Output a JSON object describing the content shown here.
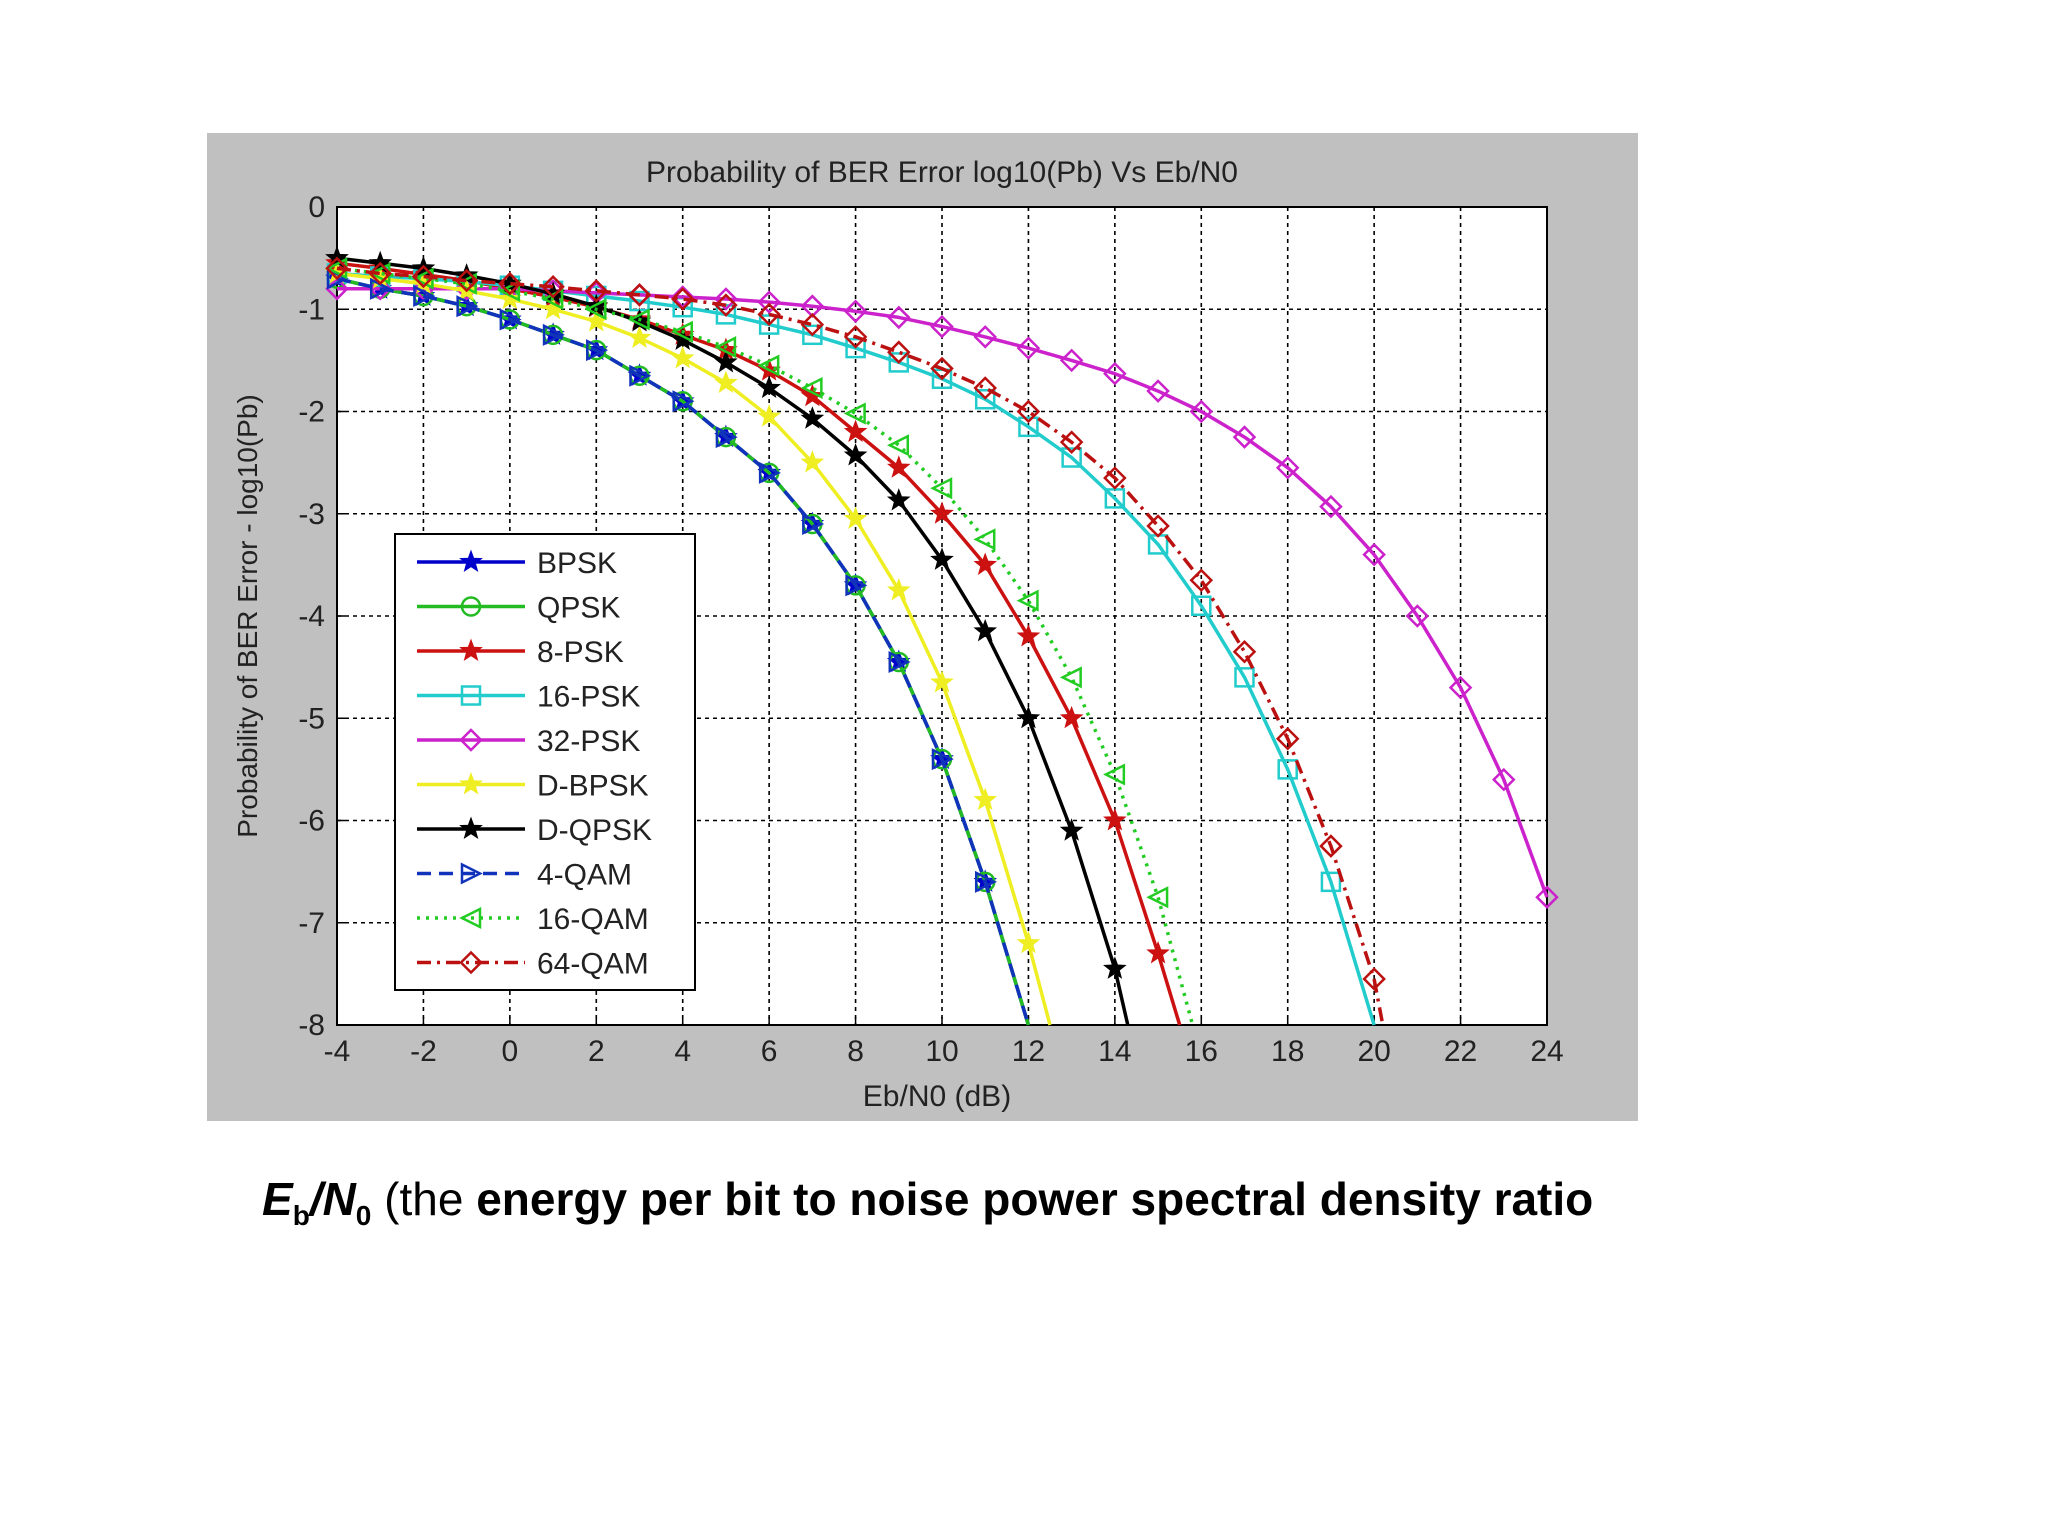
{
  "chart_data": {
    "type": "line",
    "title": "Probability of BER Error log10(Pb) Vs Eb/N0",
    "xlabel": "Eb/N0 (dB)",
    "ylabel": "Probability of BER Error - log10(Pb)",
    "xlim": [
      -4,
      24
    ],
    "ylim": [
      -8,
      0
    ],
    "xticks": [
      -4,
      -2,
      0,
      2,
      4,
      6,
      8,
      10,
      12,
      14,
      16,
      18,
      20,
      22,
      24
    ],
    "yticks": [
      0,
      -1,
      -2,
      -3,
      -4,
      -5,
      -6,
      -7,
      -8
    ],
    "grid": true,
    "legend_position": "lower-left",
    "series": [
      {
        "name": "BPSK",
        "color": "#0000cc",
        "style": "solid",
        "marker": "star",
        "x": [
          -4,
          -3,
          -2,
          -1,
          0,
          1,
          2,
          3,
          4,
          5,
          6,
          7,
          8,
          9,
          10,
          11,
          12
        ],
        "y": [
          -0.7,
          -0.8,
          -0.87,
          -0.97,
          -1.1,
          -1.25,
          -1.4,
          -1.65,
          -1.9,
          -2.25,
          -2.6,
          -3.1,
          -3.7,
          -4.45,
          -5.4,
          -6.6,
          -8.0
        ]
      },
      {
        "name": "QPSK",
        "color": "#22bb22",
        "style": "solid",
        "marker": "circle",
        "x": [
          -4,
          -3,
          -2,
          -1,
          0,
          1,
          2,
          3,
          4,
          5,
          6,
          7,
          8,
          9,
          10,
          11,
          12
        ],
        "y": [
          -0.7,
          -0.8,
          -0.87,
          -0.97,
          -1.1,
          -1.25,
          -1.4,
          -1.65,
          -1.9,
          -2.25,
          -2.6,
          -3.1,
          -3.7,
          -4.45,
          -5.4,
          -6.6,
          -8.0
        ]
      },
      {
        "name": "8-PSK",
        "color": "#cc1111",
        "style": "solid",
        "marker": "star",
        "x": [
          -4,
          -3,
          -2,
          -1,
          0,
          1,
          2,
          3,
          4,
          5,
          6,
          7,
          8,
          9,
          10,
          11,
          12,
          13,
          14,
          15,
          15.5
        ],
        "y": [
          -0.55,
          -0.6,
          -0.66,
          -0.72,
          -0.8,
          -0.88,
          -0.98,
          -1.1,
          -1.25,
          -1.4,
          -1.6,
          -1.85,
          -2.2,
          -2.55,
          -3.0,
          -3.5,
          -4.2,
          -5.0,
          -6.0,
          -7.3,
          -8.0
        ]
      },
      {
        "name": "16-PSK",
        "color": "#22cccc",
        "style": "solid",
        "marker": "square",
        "x": [
          -4,
          -3,
          -2,
          -1,
          0,
          1,
          2,
          3,
          4,
          5,
          6,
          7,
          8,
          9,
          10,
          11,
          12,
          13,
          14,
          15,
          16,
          17,
          18,
          19,
          20
        ],
        "y": [
          -0.65,
          -0.68,
          -0.7,
          -0.73,
          -0.77,
          -0.82,
          -0.87,
          -0.92,
          -0.98,
          -1.05,
          -1.15,
          -1.25,
          -1.38,
          -1.52,
          -1.68,
          -1.88,
          -2.15,
          -2.45,
          -2.85,
          -3.3,
          -3.9,
          -4.6,
          -5.5,
          -6.6,
          -8.0
        ]
      },
      {
        "name": "32-PSK",
        "color": "#cc22cc",
        "style": "solid",
        "marker": "diamond",
        "x": [
          -4,
          -3,
          -2,
          -1,
          0,
          1,
          2,
          3,
          4,
          5,
          6,
          7,
          8,
          9,
          10,
          11,
          12,
          13,
          14,
          15,
          16,
          17,
          18,
          19,
          20,
          21,
          22,
          23,
          24
        ],
        "y": [
          -0.8,
          -0.8,
          -0.8,
          -0.8,
          -0.8,
          -0.82,
          -0.84,
          -0.86,
          -0.88,
          -0.9,
          -0.93,
          -0.97,
          -1.02,
          -1.08,
          -1.17,
          -1.27,
          -1.38,
          -1.5,
          -1.63,
          -1.8,
          -2.0,
          -2.25,
          -2.55,
          -2.93,
          -3.4,
          -4.0,
          -4.7,
          -5.6,
          -6.75
        ]
      },
      {
        "name": "D-BPSK",
        "color": "#eeee22",
        "style": "solid",
        "marker": "star",
        "x": [
          -4,
          -3,
          -2,
          -1,
          0,
          1,
          2,
          3,
          4,
          5,
          6,
          7,
          8,
          9,
          10,
          11,
          12,
          12.5
        ],
        "y": [
          -0.65,
          -0.7,
          -0.75,
          -0.82,
          -0.9,
          -1.0,
          -1.12,
          -1.28,
          -1.48,
          -1.72,
          -2.05,
          -2.5,
          -3.05,
          -3.75,
          -4.65,
          -5.8,
          -7.2,
          -8.0
        ]
      },
      {
        "name": "D-QPSK",
        "color": "#000000",
        "style": "solid",
        "marker": "star",
        "x": [
          -4,
          -3,
          -2,
          -1,
          0,
          1,
          2,
          3,
          4,
          5,
          6,
          7,
          8,
          9,
          10,
          11,
          12,
          13,
          14,
          14.3
        ],
        "y": [
          -0.5,
          -0.55,
          -0.6,
          -0.67,
          -0.75,
          -0.85,
          -0.97,
          -1.12,
          -1.3,
          -1.52,
          -1.77,
          -2.07,
          -2.43,
          -2.87,
          -3.45,
          -4.15,
          -5.0,
          -6.1,
          -7.45,
          -8.0
        ]
      },
      {
        "name": "4-QAM",
        "color": "#1133bb",
        "style": "dashed",
        "marker": "triangle-right",
        "x": [
          -4,
          -3,
          -2,
          -1,
          0,
          1,
          2,
          3,
          4,
          5,
          6,
          7,
          8,
          9,
          10,
          11,
          12
        ],
        "y": [
          -0.7,
          -0.8,
          -0.87,
          -0.97,
          -1.1,
          -1.25,
          -1.4,
          -1.65,
          -1.9,
          -2.25,
          -2.6,
          -3.1,
          -3.7,
          -4.45,
          -5.4,
          -6.6,
          -8.0
        ]
      },
      {
        "name": "16-QAM",
        "color": "#22cc22",
        "style": "dotted",
        "marker": "triangle-left",
        "x": [
          -4,
          -3,
          -2,
          -1,
          0,
          1,
          2,
          3,
          4,
          5,
          6,
          7,
          8,
          9,
          10,
          11,
          12,
          13,
          14,
          15,
          15.8
        ],
        "y": [
          -0.6,
          -0.65,
          -0.7,
          -0.75,
          -0.82,
          -0.9,
          -1.0,
          -1.1,
          -1.22,
          -1.37,
          -1.55,
          -1.77,
          -2.02,
          -2.33,
          -2.75,
          -3.25,
          -3.85,
          -4.6,
          -5.55,
          -6.75,
          -8.0
        ]
      },
      {
        "name": "64-QAM",
        "color": "#bb1111",
        "style": "dashdot",
        "marker": "diamond",
        "x": [
          -4,
          -3,
          -2,
          -1,
          0,
          1,
          2,
          3,
          4,
          5,
          6,
          7,
          8,
          9,
          10,
          11,
          12,
          13,
          14,
          15,
          16,
          17,
          18,
          19,
          20,
          20.2
        ],
        "y": [
          -0.6,
          -0.65,
          -0.68,
          -0.72,
          -0.75,
          -0.78,
          -0.82,
          -0.86,
          -0.9,
          -0.96,
          -1.05,
          -1.15,
          -1.27,
          -1.42,
          -1.58,
          -1.77,
          -2.0,
          -2.3,
          -2.65,
          -3.12,
          -3.65,
          -4.35,
          -5.2,
          -6.25,
          -7.55,
          -8.0
        ]
      }
    ]
  }
}
